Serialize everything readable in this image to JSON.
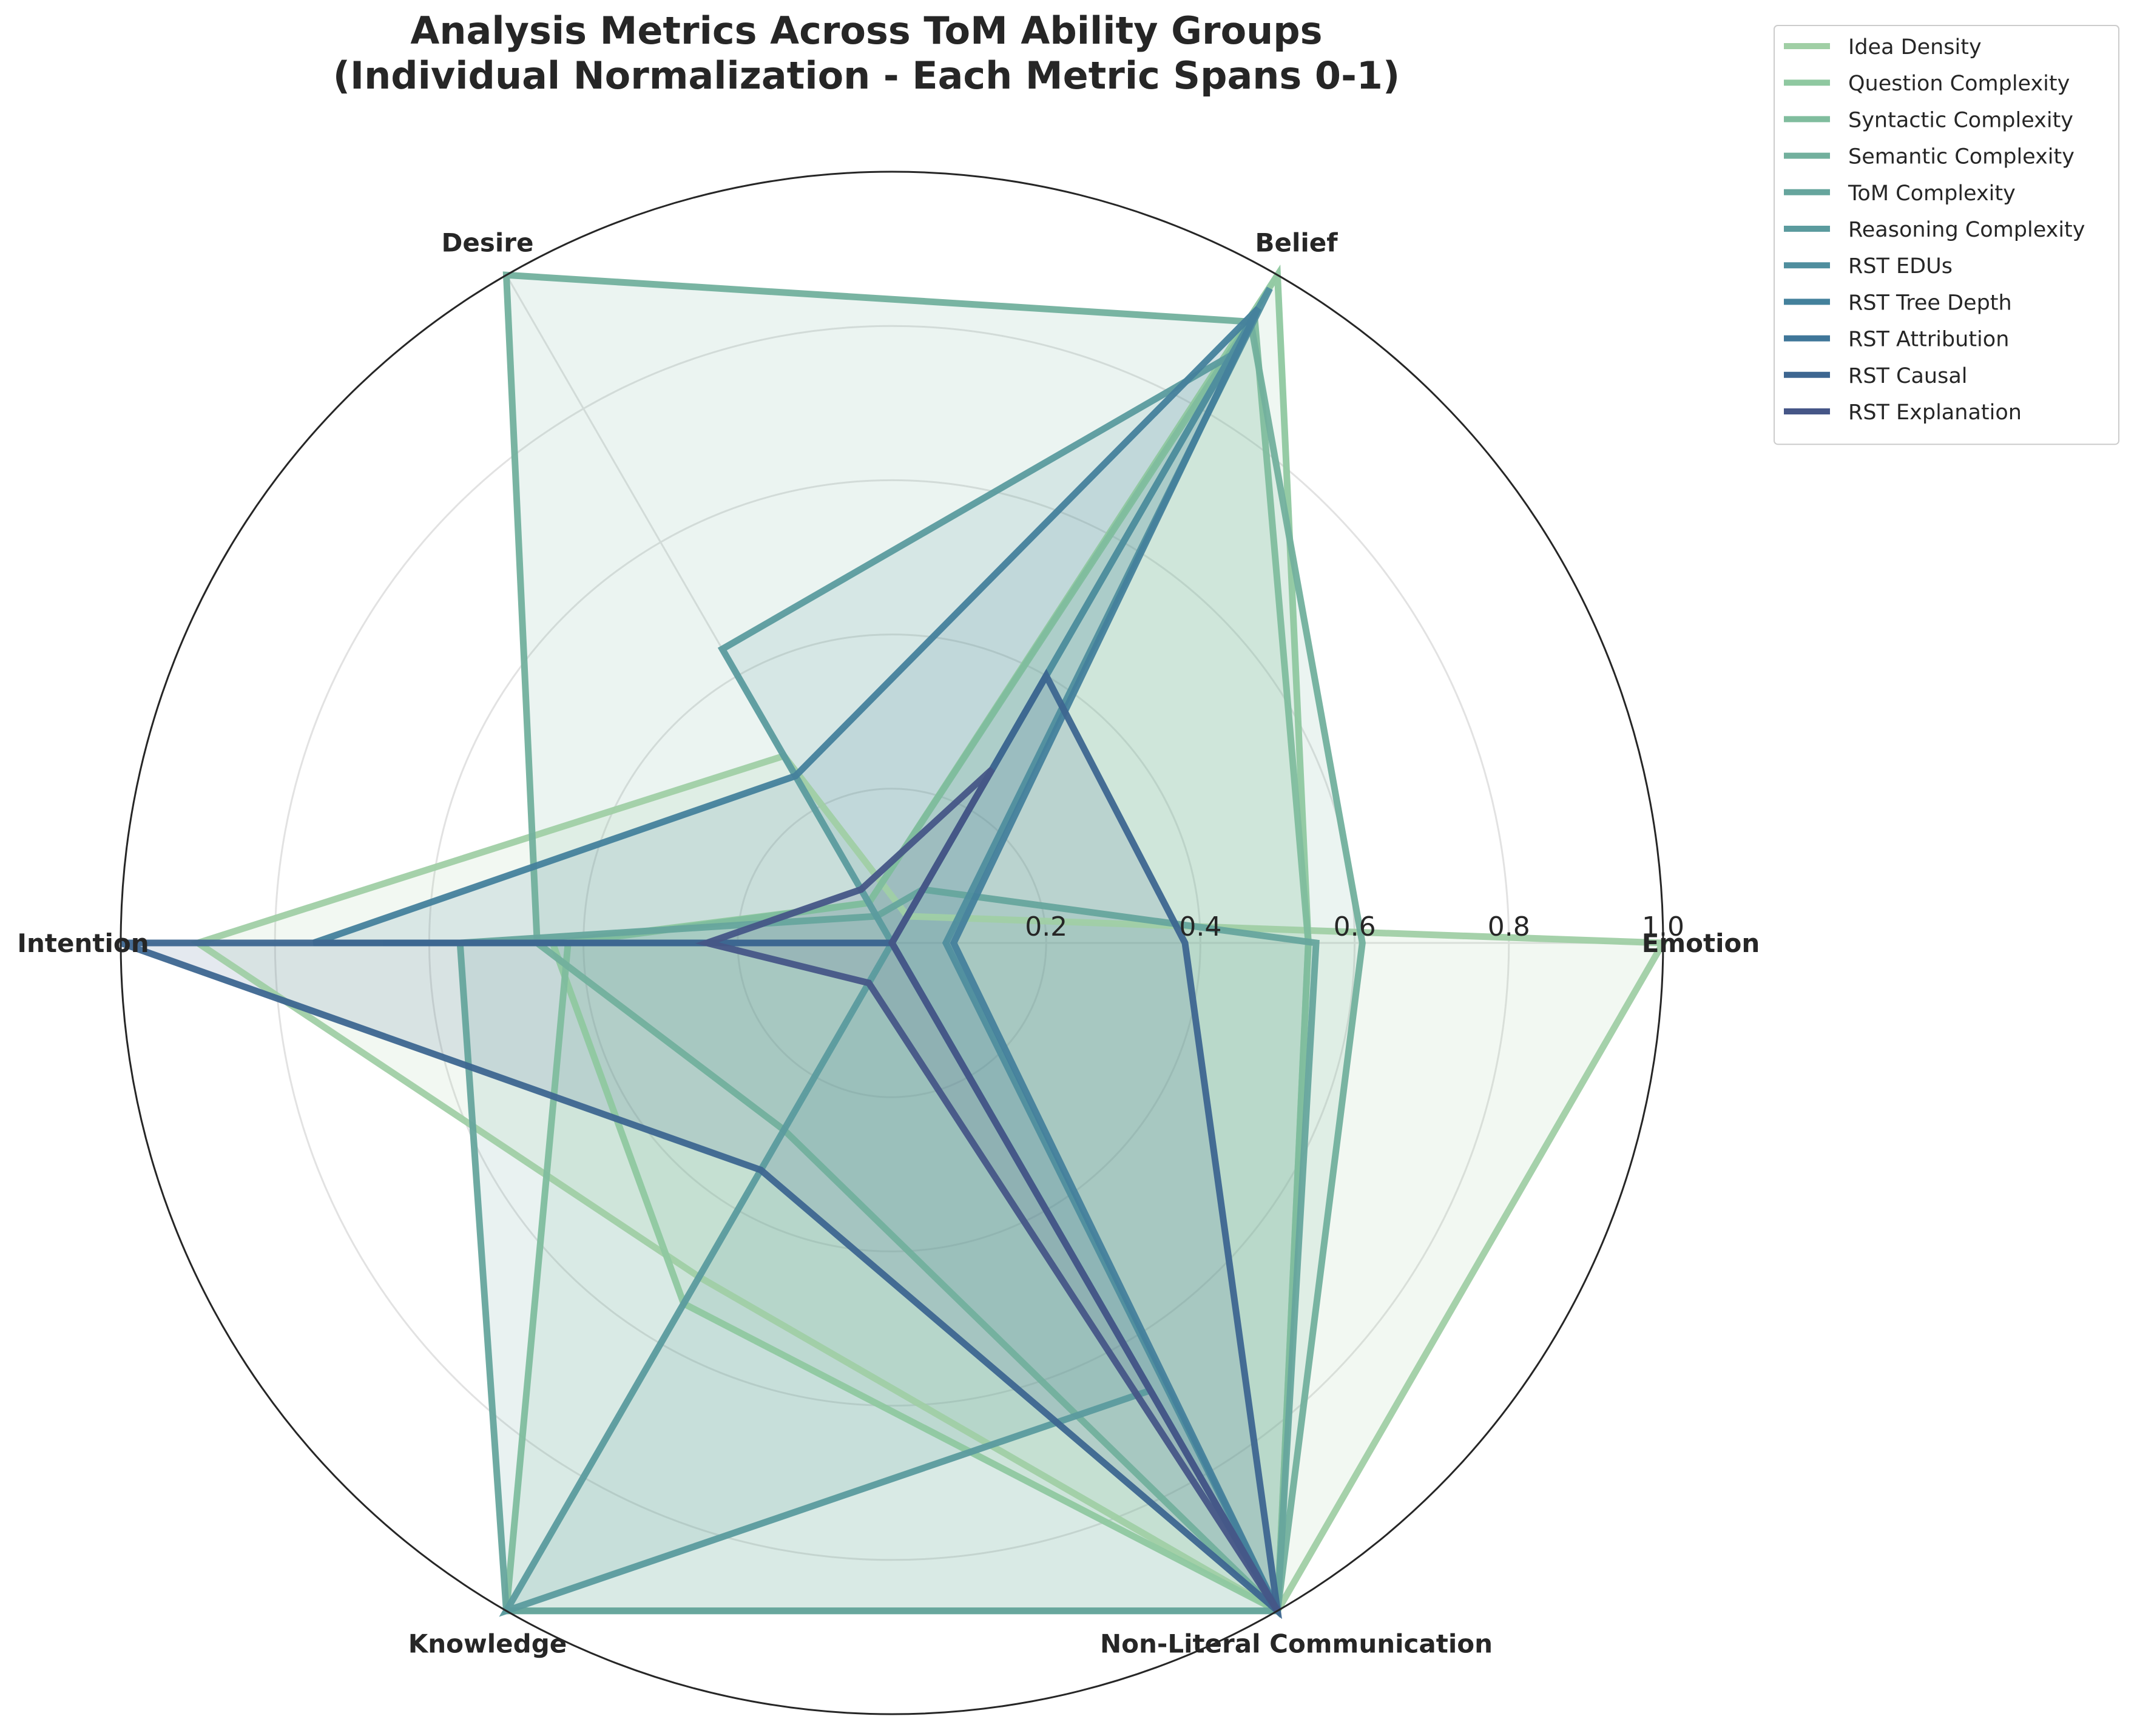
{
  "chart_data": {
    "type": "radar",
    "title_lines": [
      "Analysis Metrics Across ToM Ability Groups",
      "(Individual Normalization - Each Metric Spans 0-1)"
    ],
    "categories": [
      "Emotion",
      "Belief",
      "Desire",
      "Intention",
      "Knowledge",
      "Non-Literal Communication"
    ],
    "rlim": [
      0,
      1
    ],
    "rticks": [
      0.2,
      0.4,
      0.6,
      0.8,
      1.0
    ],
    "rtick_labels": [
      "0.2",
      "0.4",
      "0.6",
      "0.8",
      "1.0"
    ],
    "grid": true,
    "legend_position": "upper right, outside",
    "series": [
      {
        "name": "Idea Density",
        "color": "#a0cfa5",
        "values": [
          1.0,
          0.04,
          0.28,
          0.9,
          0.5,
          1.0
        ]
      },
      {
        "name": "Question Complexity",
        "color": "#8fc8a0",
        "values": [
          0.54,
          1.0,
          0.06,
          0.44,
          0.54,
          1.0
        ]
      },
      {
        "name": "Syntactic Complexity",
        "color": "#80bd9e",
        "values": [
          0.54,
          0.94,
          0.06,
          0.42,
          1.0,
          1.0
        ]
      },
      {
        "name": "Semantic Complexity",
        "color": "#72b09d",
        "values": [
          0.61,
          0.93,
          1.0,
          0.46,
          0.28,
          1.0
        ]
      },
      {
        "name": "ToM Complexity",
        "color": "#66a59d",
        "values": [
          0.55,
          0.08,
          0.04,
          0.56,
          1.0,
          1.0
        ]
      },
      {
        "name": "Reasoning Complexity",
        "color": "#5b9b9e",
        "values": [
          0.0,
          0.88,
          0.44,
          0.0,
          1.0,
          0.67
        ]
      },
      {
        "name": "RST EDUs",
        "color": "#4f8e9e",
        "values": [
          0.07,
          0.98,
          0.0,
          0.0,
          0.0,
          1.0
        ]
      },
      {
        "name": "RST Tree Depth",
        "color": "#44819c",
        "values": [
          0.08,
          0.95,
          0.25,
          0.75,
          0.0,
          1.0
        ]
      },
      {
        "name": "RST Attribution",
        "color": "#3f7699",
        "values": [
          0.0,
          0.0,
          0.0,
          0.66,
          0.0,
          1.0
        ]
      },
      {
        "name": "RST Causal",
        "color": "#3d6690",
        "values": [
          0.38,
          0.4,
          0.0,
          1.0,
          0.34,
          1.0
        ]
      },
      {
        "name": "RST Explanation",
        "color": "#465687",
        "values": [
          0.0,
          0.26,
          0.08,
          0.24,
          0.06,
          1.0
        ]
      }
    ]
  }
}
